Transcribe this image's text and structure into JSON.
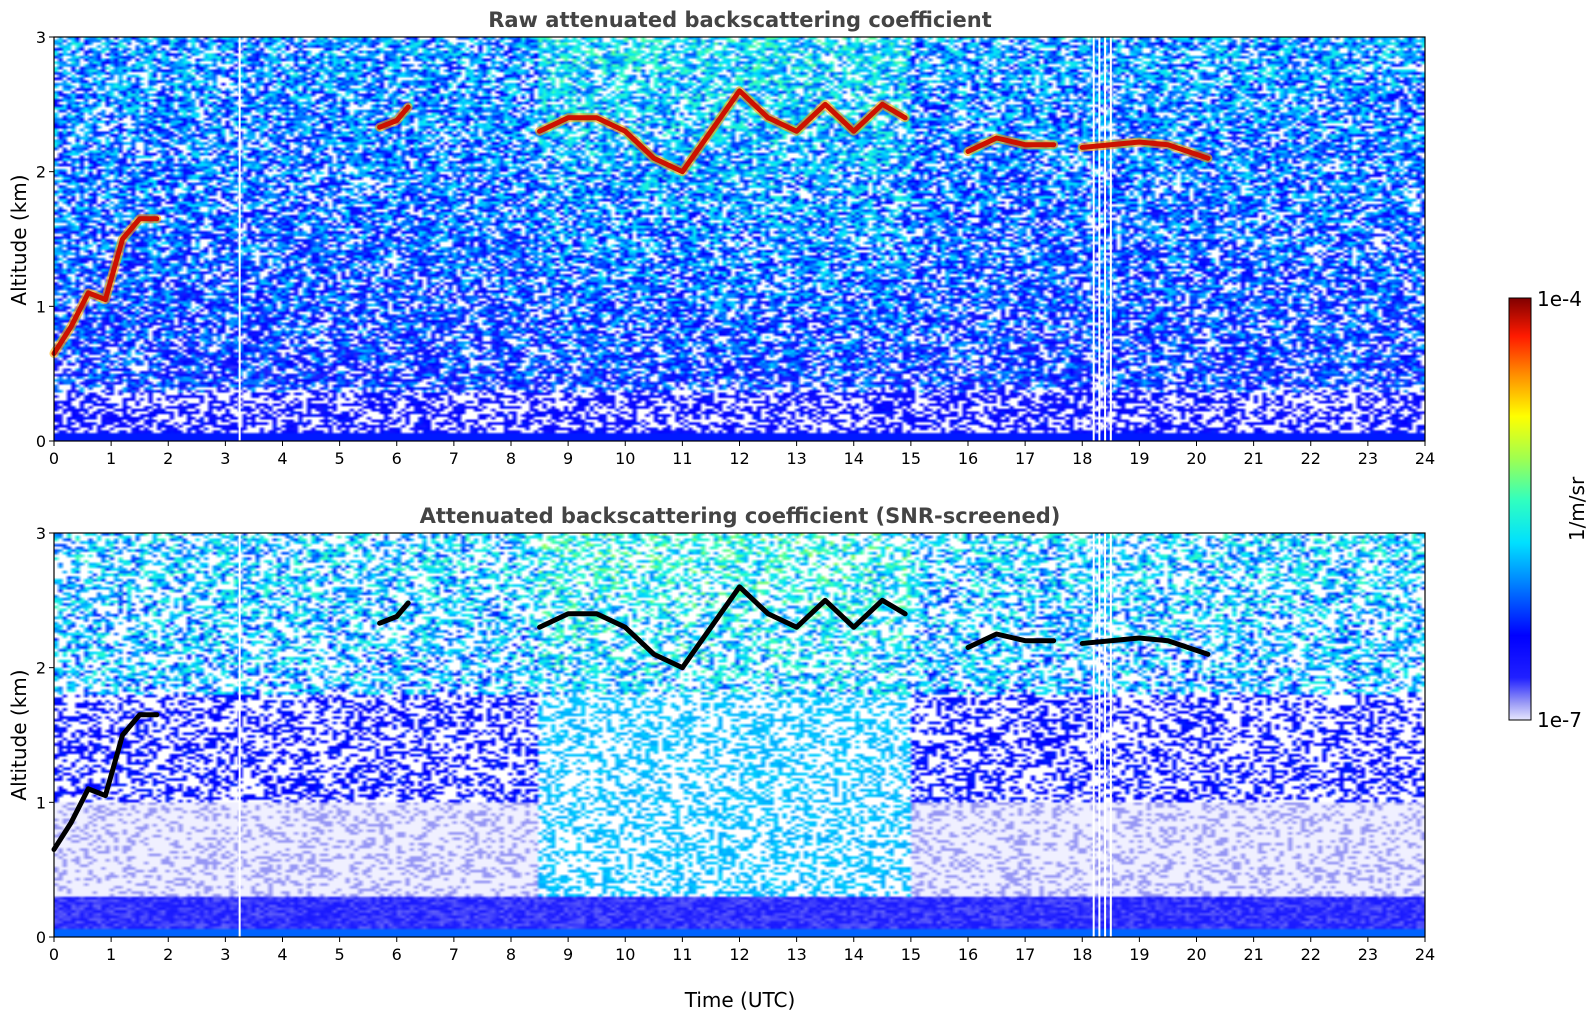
{
  "chart_data": [
    {
      "type": "heatmap",
      "title": "Raw attenuated backscattering coefficient",
      "xlabel": "",
      "ylabel": "Altitude (km)",
      "xlim": [
        0,
        24
      ],
      "ylim": [
        0,
        3
      ],
      "xticks": [
        "0",
        "1",
        "2",
        "3",
        "4",
        "5",
        "6",
        "7",
        "8",
        "9",
        "10",
        "11",
        "12",
        "13",
        "14",
        "15",
        "16",
        "17",
        "18",
        "19",
        "20",
        "21",
        "22",
        "23",
        "24"
      ],
      "yticks": [
        "0",
        "1",
        "2",
        "3"
      ],
      "screened": false,
      "cloud_layers": [
        {
          "x": [
            0.0,
            0.3,
            0.6,
            0.9,
            1.2,
            1.5,
            1.8
          ],
          "y": [
            0.65,
            0.85,
            1.1,
            1.05,
            1.5,
            1.65,
            1.65
          ]
        },
        {
          "x": [
            5.7,
            6.0,
            6.2
          ],
          "y": [
            2.33,
            2.38,
            2.48
          ]
        },
        {
          "x": [
            8.5,
            9.0,
            9.5,
            10.0,
            10.5,
            11.0,
            11.5,
            12.0,
            12.5,
            13.0,
            13.5,
            14.0,
            14.5,
            14.9
          ],
          "y": [
            2.3,
            2.4,
            2.4,
            2.3,
            2.1,
            2.0,
            2.3,
            2.6,
            2.4,
            2.3,
            2.5,
            2.3,
            2.5,
            2.4
          ]
        },
        {
          "x": [
            16.0,
            16.5,
            17.0,
            17.5
          ],
          "y": [
            2.15,
            2.25,
            2.2,
            2.2
          ]
        },
        {
          "x": [
            18.0,
            18.5,
            19.0,
            19.5,
            20.2
          ],
          "y": [
            2.18,
            2.2,
            2.22,
            2.2,
            2.1
          ]
        }
      ],
      "data_gaps_hours": [
        3.25,
        18.2,
        18.3,
        18.4,
        18.5
      ]
    },
    {
      "type": "heatmap",
      "title": "Attenuated backscattering coefficient (SNR-screened)",
      "xlabel": "Time (UTC)",
      "ylabel": "Altitude (km)",
      "xlim": [
        0,
        24
      ],
      "ylim": [
        0,
        3
      ],
      "xticks": [
        "0",
        "1",
        "2",
        "3",
        "4",
        "5",
        "6",
        "7",
        "8",
        "9",
        "10",
        "11",
        "12",
        "13",
        "14",
        "15",
        "16",
        "17",
        "18",
        "19",
        "20",
        "21",
        "22",
        "23",
        "24"
      ],
      "yticks": [
        "0",
        "1",
        "2",
        "3"
      ],
      "screened": true,
      "cloud_layers": [
        {
          "x": [
            0.0,
            0.3,
            0.6,
            0.9,
            1.2,
            1.5,
            1.8
          ],
          "y": [
            0.65,
            0.85,
            1.1,
            1.05,
            1.5,
            1.65,
            1.65
          ]
        },
        {
          "x": [
            5.7,
            6.0,
            6.2
          ],
          "y": [
            2.33,
            2.38,
            2.48
          ]
        },
        {
          "x": [
            8.5,
            9.0,
            9.5,
            10.0,
            10.5,
            11.0,
            11.5,
            12.0,
            12.5,
            13.0,
            13.5,
            14.0,
            14.5,
            14.9
          ],
          "y": [
            2.3,
            2.4,
            2.4,
            2.3,
            2.1,
            2.0,
            2.3,
            2.6,
            2.4,
            2.3,
            2.5,
            2.3,
            2.5,
            2.4
          ]
        },
        {
          "x": [
            16.0,
            16.5,
            17.0,
            17.5
          ],
          "y": [
            2.15,
            2.25,
            2.2,
            2.2
          ]
        },
        {
          "x": [
            18.0,
            18.5,
            19.0,
            19.5,
            20.2
          ],
          "y": [
            2.18,
            2.2,
            2.22,
            2.2,
            2.1
          ]
        }
      ],
      "data_gaps_hours": [
        3.25,
        18.2,
        18.3,
        18.4,
        18.5
      ]
    }
  ],
  "colorbar": {
    "label": "1/m/sr",
    "max_label": "1e-4",
    "min_label": "1e-7",
    "scale": "log",
    "range": [
      1e-07,
      0.0001
    ],
    "colormap": "jet"
  }
}
